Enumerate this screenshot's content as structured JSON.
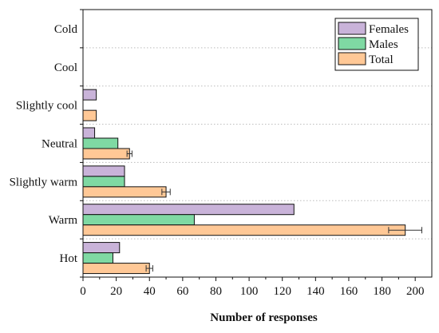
{
  "chart_data": {
    "type": "bar",
    "orientation": "horizontal",
    "categories": [
      "Cold",
      "Cool",
      "Slightly cool",
      "Neutral",
      "Slightly warm",
      "Warm",
      "Hot"
    ],
    "series": [
      {
        "name": "Females",
        "color": "#c9b3d9",
        "values": [
          0,
          0,
          8,
          7,
          25,
          127,
          22
        ]
      },
      {
        "name": "Males",
        "color": "#7fd9a3",
        "values": [
          0,
          0,
          0,
          21,
          25,
          67,
          18
        ]
      },
      {
        "name": "Total",
        "color": "#ffc896",
        "values": [
          0,
          0,
          8,
          28,
          50,
          194,
          40
        ],
        "errors": [
          0,
          0,
          0,
          1.5,
          2.5,
          10,
          2
        ]
      }
    ],
    "xlabel": "Number of responses",
    "ylabel": "",
    "xlim": [
      0,
      210
    ],
    "xticks": [
      0,
      20,
      40,
      60,
      80,
      100,
      120,
      140,
      160,
      180,
      200
    ],
    "legend_position": "top-right",
    "grid": "horizontal dotted separators between categories"
  }
}
